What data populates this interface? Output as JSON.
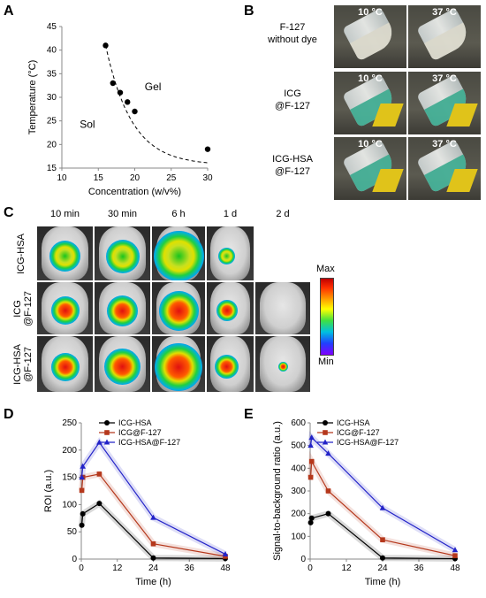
{
  "panels": {
    "A": "A",
    "B": "B",
    "C": "C",
    "D": "D",
    "E": "E"
  },
  "panelB": {
    "rows": [
      {
        "label_line1": "F-127",
        "label_line2": "without dye",
        "t1": "10 °C",
        "t2": "37 °C",
        "liquid": "#e8e6d8"
      },
      {
        "label_line1": "ICG",
        "label_line2": "@F-127",
        "t1": "10 °C",
        "t2": "37 °C",
        "liquid": "#3fb59a"
      },
      {
        "label_line1": "ICG-HSA",
        "label_line2": "@F-127",
        "t1": "10 °C",
        "t2": "37 °C",
        "liquid": "#3fb59a"
      }
    ]
  },
  "panelC": {
    "times": [
      "10 min",
      "30 min",
      "6 h",
      "1 d",
      "2 d"
    ],
    "rows": [
      "ICG-HSA",
      "ICG\n@F-127",
      "ICG-HSA\n@F-127"
    ],
    "colorbar_max": "Max",
    "colorbar_min": "Min"
  },
  "chart_data": [
    {
      "id": "A",
      "type": "scatter",
      "xlabel": "Concentration (w/v%)",
      "ylabel": "Temperature (°C)",
      "xlim": [
        10,
        30
      ],
      "ylim": [
        15,
        45
      ],
      "xticks": [
        10,
        15,
        20,
        25,
        30
      ],
      "yticks": [
        15,
        20,
        25,
        30,
        35,
        40,
        45
      ],
      "points": [
        [
          16,
          41
        ],
        [
          17,
          33
        ],
        [
          18,
          31
        ],
        [
          19,
          29
        ],
        [
          20,
          27
        ],
        [
          30,
          19
        ]
      ],
      "fit_curve": "dashed",
      "annotations": [
        {
          "text": "Gel",
          "x": 22.5,
          "y": 31.5
        },
        {
          "text": "Sol",
          "x": 13.5,
          "y": 23.5
        }
      ]
    },
    {
      "id": "D",
      "type": "line",
      "xlabel": "Time (h)",
      "ylabel": "ROI (a.u.)",
      "xlim": [
        0,
        48
      ],
      "ylim": [
        0,
        250
      ],
      "xticks": [
        0,
        12,
        24,
        36,
        48
      ],
      "yticks": [
        0,
        50,
        100,
        150,
        200,
        250
      ],
      "legend": "top",
      "series": [
        {
          "name": "ICG-HSA",
          "color": "#000000",
          "marker": "circle",
          "x": [
            0.17,
            0.5,
            6,
            24,
            48
          ],
          "y": [
            62,
            83,
            102,
            2,
            1
          ]
        },
        {
          "name": "ICG@F-127",
          "color": "#b5381c",
          "marker": "square",
          "x": [
            0.17,
            0.5,
            6,
            24,
            48
          ],
          "y": [
            126,
            150,
            156,
            28,
            5
          ]
        },
        {
          "name": "ICG-HSA@F-127",
          "color": "#2323c8",
          "marker": "triangle",
          "x": [
            0.17,
            0.5,
            6,
            24,
            48
          ],
          "y": [
            150,
            170,
            214,
            76,
            9
          ]
        }
      ]
    },
    {
      "id": "E",
      "type": "line",
      "xlabel": "Time (h)",
      "ylabel": "Signal-to-background ratio (a.u.)",
      "xlim": [
        0,
        48
      ],
      "ylim": [
        0,
        600
      ],
      "xticks": [
        0,
        12,
        24,
        36,
        48
      ],
      "yticks": [
        0,
        100,
        200,
        300,
        400,
        500,
        600
      ],
      "legend": "top",
      "series": [
        {
          "name": "ICG-HSA",
          "color": "#000000",
          "marker": "circle",
          "x": [
            0.17,
            0.5,
            6,
            24,
            48
          ],
          "y": [
            160,
            180,
            200,
            5,
            2
          ]
        },
        {
          "name": "ICG@F-127",
          "color": "#b5381c",
          "marker": "square",
          "x": [
            0.17,
            0.5,
            6,
            24,
            48
          ],
          "y": [
            360,
            430,
            300,
            85,
            15
          ]
        },
        {
          "name": "ICG-HSA@F-127",
          "color": "#2323c8",
          "marker": "triangle",
          "x": [
            0.17,
            0.5,
            6,
            24,
            48
          ],
          "y": [
            500,
            535,
            465,
            225,
            40
          ]
        }
      ]
    }
  ]
}
